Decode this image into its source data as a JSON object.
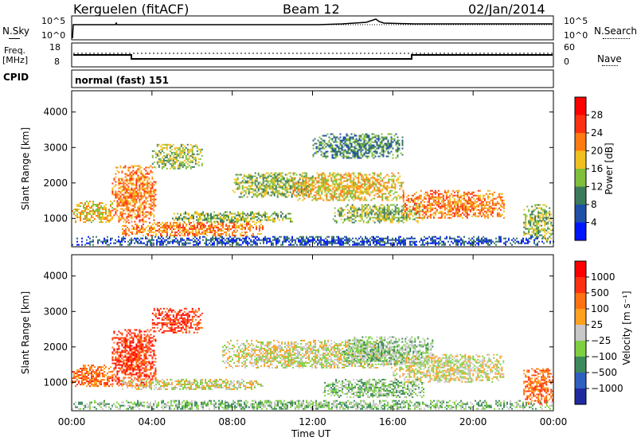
{
  "header": {
    "station": "Kerguelen (fitACF)",
    "beam": "Beam 12",
    "date": "02/Jan/2014"
  },
  "panels": {
    "nsky": {
      "label": "N.Sky",
      "right_label": "N.Search",
      "ticks": [
        "10^5",
        "10^0"
      ]
    },
    "freq": {
      "label_line1": "Freq.",
      "label_line2": "[MHz]",
      "ticks_left": [
        "18",
        "8"
      ],
      "ticks_right": [
        "60",
        "0"
      ],
      "right_label": "Nave"
    },
    "cpid": {
      "label": "CPID",
      "value": "normal (fast) 151"
    }
  },
  "chart_data": [
    {
      "type": "heatmap",
      "title": "",
      "ylabel": "Slant Range [km]",
      "xlabel": "",
      "xlim": [
        0,
        24
      ],
      "ylim": [
        200,
        4600
      ],
      "yticks": [
        "1000",
        "2000",
        "3000",
        "4000"
      ],
      "colorbar": {
        "label": "Power [dB]",
        "ticks": [
          "4",
          "8",
          "12",
          "16",
          "20",
          "24",
          "28"
        ],
        "colors": [
          "#0015ff",
          "#1f50a8",
          "#3c7a5c",
          "#7fbf3a",
          "#f0c020",
          "#ff7a10",
          "#ff3010",
          "#ff0000"
        ]
      },
      "regions": [
        {
          "t0": 0.0,
          "t1": 2.0,
          "r_lo": 900,
          "r_hi": 1500,
          "level": 4
        },
        {
          "t0": 2.0,
          "t1": 4.2,
          "r_lo": 900,
          "r_hi": 2500,
          "level": 5
        },
        {
          "t0": 4.0,
          "t1": 6.5,
          "r_lo": 2400,
          "r_hi": 3100,
          "level": 3
        },
        {
          "t0": 2.5,
          "t1": 9.5,
          "r_lo": 500,
          "r_hi": 900,
          "level": 5
        },
        {
          "t0": 5.0,
          "t1": 11.0,
          "r_lo": 900,
          "r_hi": 1200,
          "level": 3
        },
        {
          "t0": 8.0,
          "t1": 12.0,
          "r_lo": 1600,
          "r_hi": 2300,
          "level": 3
        },
        {
          "t0": 11.0,
          "t1": 16.5,
          "r_lo": 1500,
          "r_hi": 2300,
          "level": 4
        },
        {
          "t0": 12.0,
          "t1": 16.5,
          "r_lo": 2700,
          "r_hi": 3400,
          "level": 2
        },
        {
          "t0": 13.0,
          "t1": 17.5,
          "r_lo": 900,
          "r_hi": 1400,
          "level": 3
        },
        {
          "t0": 16.5,
          "t1": 21.5,
          "r_lo": 1000,
          "r_hi": 1800,
          "level": 5
        },
        {
          "t0": 22.5,
          "t1": 24.0,
          "r_lo": 400,
          "r_hi": 1400,
          "level": 3
        },
        {
          "t0": 0.0,
          "t1": 24.0,
          "r_lo": 250,
          "r_hi": 500,
          "level": 1
        }
      ]
    },
    {
      "type": "heatmap",
      "title": "",
      "ylabel": "Slant Range [km]",
      "xlabel": "Time UT",
      "xlim": [
        0,
        24
      ],
      "ylim": [
        200,
        4600
      ],
      "xticks": [
        "00:00",
        "04:00",
        "08:00",
        "12:00",
        "16:00",
        "20:00",
        "00:00"
      ],
      "yticks": [
        "1000",
        "2000",
        "3000",
        "4000"
      ],
      "colorbar": {
        "label": "Velocity [m s⁻¹]",
        "ticks": [
          "1000",
          "500",
          "100",
          "25",
          "−25",
          "−100",
          "−500",
          "−1000"
        ],
        "colors": [
          "#1f2aa0",
          "#2f5fc0",
          "#3c8a5c",
          "#7ed040",
          "#c8c8c8",
          "#ffa020",
          "#ff7010",
          "#ff3010",
          "#ff0000"
        ]
      },
      "regions": [
        {
          "t0": 0.0,
          "t1": 2.0,
          "r_lo": 900,
          "r_hi": 1500,
          "level": 6
        },
        {
          "t0": 2.0,
          "t1": 4.2,
          "r_lo": 900,
          "r_hi": 2500,
          "level": 7
        },
        {
          "t0": 4.0,
          "t1": 6.5,
          "r_lo": 2400,
          "r_hi": 3100,
          "level": 7
        },
        {
          "t0": 2.5,
          "t1": 9.5,
          "r_lo": 800,
          "r_hi": 1100,
          "level": 4
        },
        {
          "t0": 7.5,
          "t1": 16.0,
          "r_lo": 1400,
          "r_hi": 2200,
          "level": 4
        },
        {
          "t0": 13.5,
          "t1": 18.0,
          "r_lo": 1500,
          "r_hi": 2300,
          "level": 3
        },
        {
          "t0": 16.0,
          "t1": 21.5,
          "r_lo": 1000,
          "r_hi": 1800,
          "level": 4
        },
        {
          "t0": 12.5,
          "t1": 17.5,
          "r_lo": 600,
          "r_hi": 1100,
          "level": 3
        },
        {
          "t0": 0.0,
          "t1": 24.0,
          "r_lo": 250,
          "r_hi": 500,
          "level": 3
        },
        {
          "t0": 22.5,
          "t1": 24.0,
          "r_lo": 400,
          "r_hi": 1400,
          "level": 6
        }
      ]
    }
  ]
}
